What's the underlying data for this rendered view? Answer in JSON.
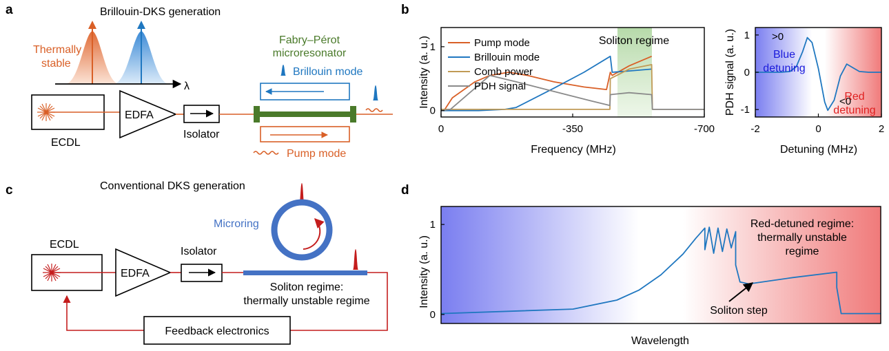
{
  "panels": {
    "a": {
      "letter": "a",
      "title": "Brillouin-DKS generation",
      "thermally_line1": "Thermally",
      "thermally_line2": "stable",
      "lambda": "λ",
      "resonator_line1": "Fabry–Pérot",
      "resonator_line2": "microresonator",
      "brillouin_mode": "Brillouin mode",
      "pump_mode": "Pump mode",
      "ecdl": "ECDL",
      "edfa": "EDFA",
      "isolator": "Isolator"
    },
    "b": {
      "letter": "b",
      "soliton_regime": "Soliton regime",
      "blue_sign": ">0",
      "blue_line1": "Blue",
      "blue_line2": "detuning",
      "red_sign": "<0",
      "red_line1": "Red",
      "red_line2": "detuning"
    },
    "c": {
      "letter": "c",
      "title": "Conventional DKS generation",
      "microring": "Microring",
      "ecdl": "ECDL",
      "edfa": "EDFA",
      "isolator": "Isolator",
      "soliton_line1": "Soliton regime:",
      "soliton_line2": "thermally unstable regime",
      "feedback": "Feedback electronics"
    },
    "d": {
      "letter": "d",
      "red_line1": "Red-detuned regime:",
      "red_line2": "thermally unstable",
      "red_line3": "regime",
      "soliton_step": "Soliton step"
    }
  },
  "colors": {
    "pump": "#d95f26",
    "brillouin": "#1f77c0",
    "comb": "#c09a55",
    "pdh": "#8a8a8a",
    "laser_red": "#c41d1d",
    "resonator_green": "#4a7a2a",
    "microring_blue": "#4472c4",
    "blue_text": "#1a1adb",
    "red_text": "#e02020",
    "soliton_band": "#b6d8a6"
  },
  "chart_data": [
    {
      "type": "line",
      "panel": "b-left",
      "title": "",
      "xlabel": "Frequency (MHz)",
      "ylabel": "Intensity (a. u.)",
      "xlim": [
        0,
        -700
      ],
      "ylim": [
        -0.1,
        1.3
      ],
      "xticks": [
        0,
        -350,
        -700
      ],
      "xtick_labels": [
        "0",
        "-350",
        "-700"
      ],
      "yticks": [
        0,
        1
      ],
      "ytick_labels": [
        "0",
        "1"
      ],
      "legend_position": "top-left",
      "highlight": {
        "label": "Soliton regime",
        "x_range": [
          -450,
          -560
        ]
      },
      "series": [
        {
          "name": "Pump mode",
          "color": "#d95f26",
          "x": [
            0,
            -10,
            -30,
            -90,
            -130,
            -180,
            -230,
            -300,
            -380,
            -440,
            -450,
            -455,
            -500,
            -560
          ],
          "y": [
            0,
            0.02,
            0.2,
            0.45,
            0.55,
            0.6,
            0.55,
            0.45,
            0.37,
            0.33,
            0.6,
            0.55,
            0.7,
            0.85
          ]
        },
        {
          "name": "Brillouin mode",
          "color": "#1f77c0",
          "x": [
            0,
            -100,
            -170,
            -200,
            -300,
            -380,
            -450,
            -455,
            -500,
            -560
          ],
          "y": [
            0,
            0,
            0.02,
            0.05,
            0.35,
            0.6,
            0.85,
            0.6,
            0.62,
            0.65
          ]
        },
        {
          "name": "Comb power",
          "color": "#c09a55",
          "x": [
            0,
            -200,
            -449,
            -450,
            -500,
            -560,
            -562,
            -700
          ],
          "y": [
            0.02,
            0.02,
            0.02,
            0.5,
            0.65,
            0.72,
            0.02,
            0.02
          ]
        },
        {
          "name": "PDH signal",
          "color": "#8a8a8a",
          "x": [
            0,
            -25,
            -80,
            -130,
            -200,
            -300,
            -400,
            -449,
            -450,
            -500,
            -560,
            -562,
            -700
          ],
          "y": [
            0,
            0.02,
            0.3,
            0.55,
            0.45,
            0.3,
            0.15,
            0.08,
            0.25,
            0.28,
            0.25,
            0.02,
            0.02
          ]
        }
      ]
    },
    {
      "type": "line",
      "panel": "b-right",
      "title": "",
      "xlabel": "Detuning (MHz)",
      "ylabel": "PDH signal (a. u.)",
      "xlim": [
        -2,
        2
      ],
      "ylim": [
        -1.2,
        1.2
      ],
      "xticks": [
        -2,
        0,
        2
      ],
      "xtick_labels": [
        "-2",
        "0",
        "2"
      ],
      "yticks": [
        -1,
        0,
        1
      ],
      "ytick_labels": [
        "-1",
        "0",
        "1"
      ],
      "background": "blue-to-red gradient",
      "series": [
        {
          "color": "#1f77c0",
          "x": [
            -2,
            -1.2,
            -0.9,
            -0.7,
            -0.5,
            -0.35,
            -0.2,
            0,
            0.2,
            0.3,
            0.5,
            0.7,
            0.9,
            1.1,
            1.3,
            1.6,
            2
          ],
          "y": [
            0,
            0,
            0.02,
            0.15,
            0.55,
            0.93,
            0.8,
            0.1,
            -0.8,
            -1.02,
            -0.75,
            -0.1,
            0.22,
            0.12,
            0.02,
            0.0,
            0.0
          ]
        }
      ]
    },
    {
      "type": "line",
      "panel": "d",
      "title": "",
      "xlabel": "Wavelength",
      "ylabel": "Intensity (a. u.)",
      "xlim": [
        0,
        1
      ],
      "ylim": [
        -0.1,
        1.2
      ],
      "yticks": [
        0,
        1
      ],
      "ytick_labels": [
        "0",
        "1"
      ],
      "background": "blue-to-red gradient",
      "series": [
        {
          "color": "#1f77c0",
          "x": [
            0,
            0.3,
            0.4,
            0.45,
            0.5,
            0.55,
            0.58,
            0.6,
            0.6,
            0.61,
            0.62,
            0.63,
            0.64,
            0.65,
            0.66,
            0.67,
            0.67,
            0.68,
            0.7,
            0.8,
            0.9,
            0.9,
            0.91,
            1.0
          ],
          "y": [
            0.01,
            0.06,
            0.16,
            0.27,
            0.44,
            0.67,
            0.85,
            0.96,
            0.72,
            0.97,
            0.68,
            0.96,
            0.7,
            0.95,
            0.74,
            0.92,
            0.55,
            0.36,
            0.34,
            0.41,
            0.47,
            0.3,
            0.01,
            0.01
          ]
        }
      ]
    }
  ]
}
